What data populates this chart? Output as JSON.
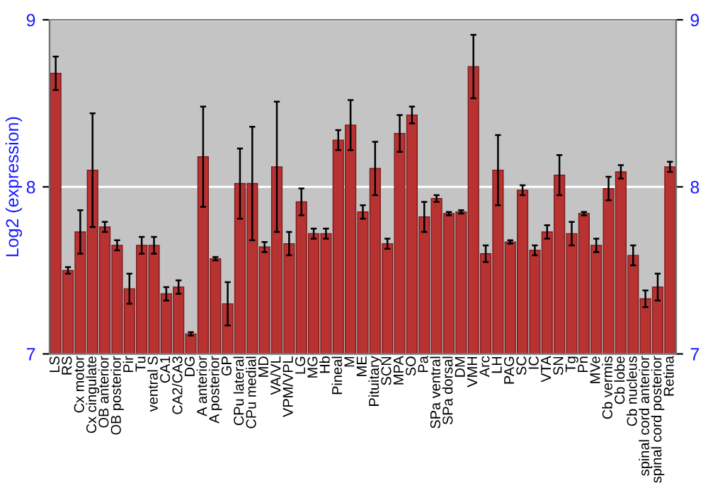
{
  "chart_data": {
    "type": "bar",
    "ylabel": "Log2 (expression)",
    "categories": [
      "LS",
      "RS",
      "Cx motor",
      "Cx cingulate",
      "OB anterior",
      "OB posterior",
      "Pir",
      "Tu",
      "ventral S",
      "CA1",
      "CA2/CA3",
      "DG",
      "A anterior",
      "A posterior",
      "GP",
      "CPu lateral",
      "CPu medial",
      "MD",
      "VA/VL",
      "VPM/VPL",
      "LG",
      "MG",
      "Hb",
      "Pineal",
      "M",
      "ME",
      "Pituitary",
      "SCN",
      "MPA",
      "SO",
      "Pa",
      "SPa ventral",
      "SPa dorsal",
      "DM",
      "VMH",
      "Arc",
      "LH",
      "PAG",
      "SC",
      "IC",
      "VTA",
      "SN",
      "Tg",
      "Pn",
      "MVe",
      "Cb vermis",
      "Cb lobe",
      "Cb nucleus",
      "spinal cord anterior",
      "spinal cord posterior",
      "Retina"
    ],
    "values": [
      8.68,
      7.5,
      7.73,
      8.1,
      7.76,
      7.65,
      7.39,
      7.65,
      7.65,
      7.36,
      7.4,
      7.12,
      8.18,
      7.57,
      7.3,
      8.02,
      8.02,
      7.64,
      8.12,
      7.66,
      7.91,
      7.72,
      7.72,
      8.28,
      8.37,
      7.85,
      8.11,
      7.66,
      8.32,
      8.43,
      7.82,
      7.93,
      7.84,
      7.85,
      8.72,
      7.6,
      8.1,
      7.67,
      7.98,
      7.62,
      7.73,
      8.07,
      7.72,
      7.84,
      7.65,
      7.99,
      8.09,
      7.59,
      7.33,
      7.4,
      8.12
    ],
    "errors": [
      0.1,
      0.02,
      0.13,
      0.34,
      0.03,
      0.03,
      0.09,
      0.05,
      0.05,
      0.04,
      0.04,
      0.01,
      0.3,
      0.01,
      0.13,
      0.21,
      0.34,
      0.03,
      0.39,
      0.07,
      0.08,
      0.03,
      0.03,
      0.06,
      0.15,
      0.04,
      0.16,
      0.03,
      0.11,
      0.05,
      0.09,
      0.02,
      0.01,
      0.01,
      0.19,
      0.05,
      0.21,
      0.01,
      0.03,
      0.03,
      0.04,
      0.12,
      0.07,
      0.01,
      0.04,
      0.07,
      0.04,
      0.06,
      0.05,
      0.08,
      0.03
    ],
    "color": "#b83232",
    "ylim": [
      7,
      9
    ],
    "yticks": [
      7,
      8,
      9
    ],
    "y2lim": [
      7,
      9
    ],
    "y2ticks": [
      7,
      8,
      9
    ],
    "grid": "y"
  }
}
